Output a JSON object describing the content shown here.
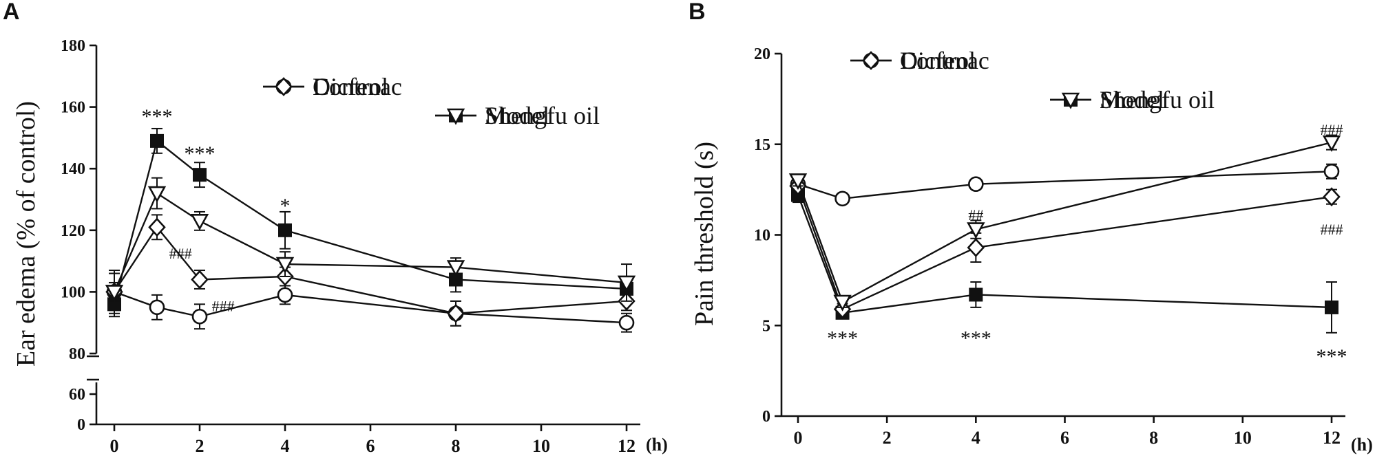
{
  "chart_data": [
    {
      "panel_label": "A",
      "type": "line",
      "ylabel": "Ear edema (% of control)",
      "x_unit": "(h)",
      "x": [
        0,
        1,
        2,
        4,
        8,
        12
      ],
      "xlim": [
        0,
        12
      ],
      "x_ticks": [
        0,
        2,
        4,
        6,
        8,
        10,
        12
      ],
      "ylim": [
        80,
        180
      ],
      "y_ticks": [
        80,
        100,
        120,
        140,
        160,
        180
      ],
      "y_break_ticks": [
        0,
        60
      ],
      "series": [
        {
          "name": "Control",
          "marker": "circle-open",
          "values": [
            100,
            95,
            92,
            99,
            93,
            90
          ],
          "errors": [
            6,
            4,
            4,
            3,
            4,
            3
          ]
        },
        {
          "name": "Model",
          "marker": "square-filled",
          "values": [
            96,
            149,
            138,
            120,
            104,
            101
          ],
          "errors": [
            4,
            4,
            4,
            6,
            4,
            4
          ]
        },
        {
          "name": "Dicfenac",
          "marker": "diamond-open",
          "values": [
            100,
            121,
            104,
            105,
            93,
            97
          ],
          "errors": [
            3,
            4,
            3,
            3,
            4,
            3
          ]
        },
        {
          "name": "Shengfu oil",
          "marker": "triangle-down-open",
          "values": [
            100,
            132,
            123,
            109,
            108,
            103
          ],
          "errors": [
            7,
            5,
            3,
            4,
            3,
            6
          ]
        }
      ],
      "annotations": [
        {
          "text": "***",
          "x": 1,
          "y": 157,
          "style": "black"
        },
        {
          "text": "***",
          "x": 2,
          "y": 145,
          "style": "black"
        },
        {
          "text": "*",
          "x": 4,
          "y": 128,
          "style": "black"
        },
        {
          "text": "###",
          "x": 1.55,
          "y": 113,
          "style": "gray"
        },
        {
          "text": "###",
          "x": 2.55,
          "y": 96,
          "style": "gray"
        }
      ]
    },
    {
      "panel_label": "B",
      "type": "line",
      "ylabel": "Pain threshold (s)",
      "x_unit": "(h)",
      "x": [
        0,
        1,
        4,
        12
      ],
      "xlim": [
        0,
        12
      ],
      "x_ticks": [
        0,
        2,
        4,
        6,
        8,
        10,
        12
      ],
      "ylim": [
        0,
        20
      ],
      "y_ticks": [
        0,
        5,
        10,
        15,
        20
      ],
      "series": [
        {
          "name": "Control",
          "marker": "circle-open",
          "values": [
            12.8,
            12.0,
            12.8,
            13.5
          ],
          "errors": [
            0.3,
            0.2,
            0.2,
            0.4
          ]
        },
        {
          "name": "Model",
          "marker": "square-filled",
          "values": [
            12.2,
            5.7,
            6.7,
            6.0
          ],
          "errors": [
            0.4,
            0.3,
            0.7,
            1.4
          ]
        },
        {
          "name": "Dicfenac",
          "marker": "diamond-open",
          "values": [
            12.7,
            5.9,
            9.3,
            12.1
          ],
          "errors": [
            0.3,
            0.3,
            0.8,
            0.4
          ]
        },
        {
          "name": "Shengfu oil",
          "marker": "triangle-down-open",
          "values": [
            13.0,
            6.3,
            10.3,
            15.1
          ],
          "errors": [
            0.3,
            0.3,
            0.5,
            0.4
          ]
        }
      ],
      "annotations": [
        {
          "text": "***",
          "x": 1,
          "y": 4.3,
          "style": "black"
        },
        {
          "text": "***",
          "x": 4,
          "y": 4.3,
          "style": "black"
        },
        {
          "text": "***",
          "x": 12,
          "y": 3.3,
          "style": "black"
        },
        {
          "text": "##",
          "x": 4,
          "y": 11.2,
          "style": "gray"
        },
        {
          "text": "###",
          "x": 12,
          "y": 15.9,
          "style": "gray"
        },
        {
          "text": "###",
          "x": 12,
          "y": 10.4,
          "style": "gray"
        }
      ]
    }
  ]
}
